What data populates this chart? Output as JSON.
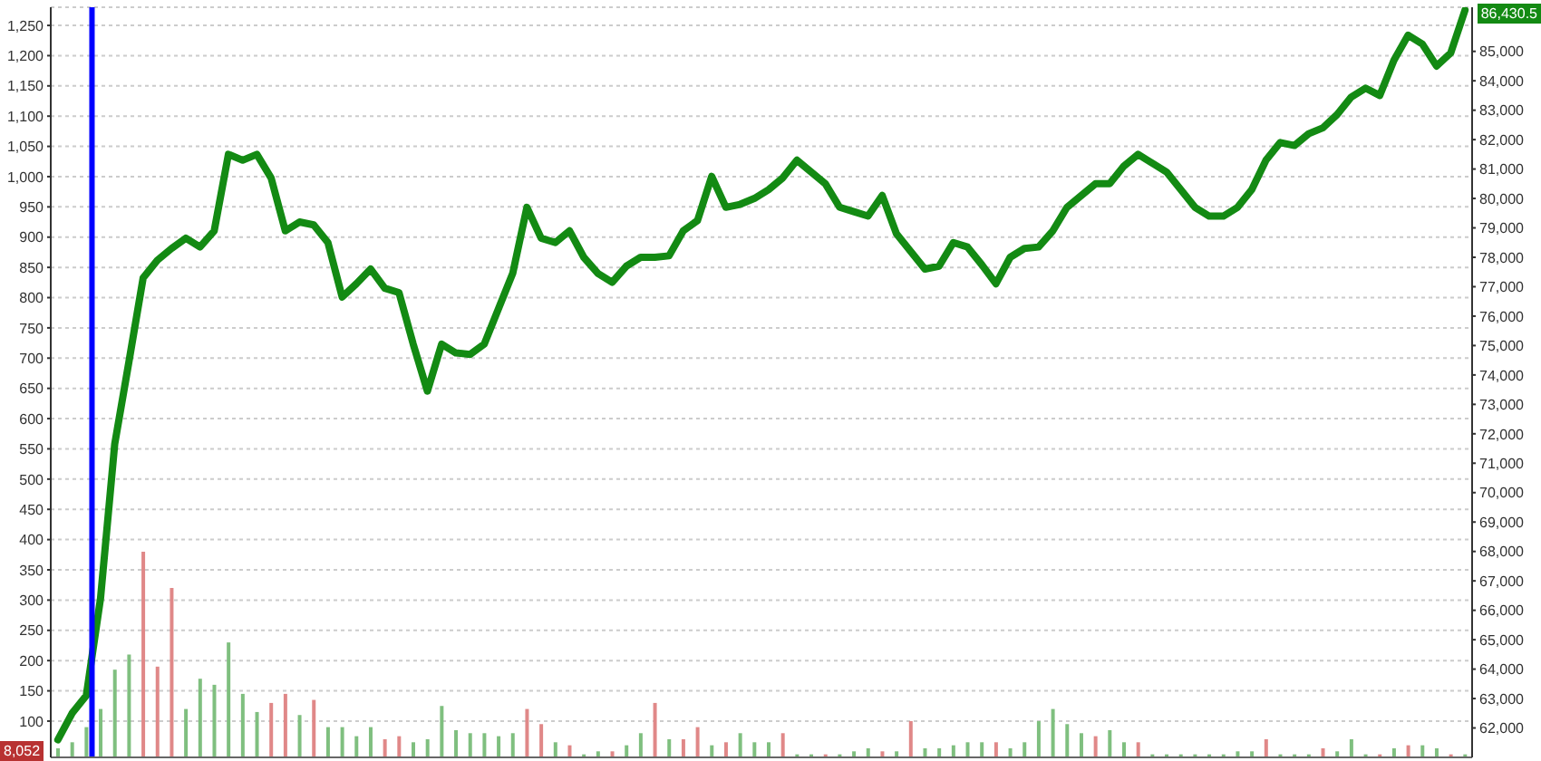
{
  "chart_data": {
    "type": "bar",
    "categories": [
      null,
      null,
      null,
      null,
      null,
      null,
      null,
      null,
      null,
      null,
      null,
      null,
      null,
      null,
      null,
      null,
      null,
      null,
      null,
      null,
      null,
      null,
      null,
      null,
      null,
      null,
      null,
      null,
      null,
      null,
      null,
      null,
      null,
      null,
      null,
      null,
      null,
      null,
      null,
      null,
      null,
      null,
      null,
      null,
      null,
      null,
      null,
      null,
      null,
      null,
      null,
      null,
      null,
      null,
      null,
      null,
      null,
      null,
      null,
      null,
      null,
      null,
      null,
      null,
      null,
      null,
      null,
      null,
      null,
      null,
      null,
      null,
      null,
      null,
      null,
      null,
      null,
      null,
      null,
      null,
      null,
      null,
      null,
      null,
      null,
      null,
      null,
      null,
      null,
      null,
      null,
      null,
      null,
      null,
      null,
      null,
      null,
      null,
      null,
      null
    ],
    "series": [
      {
        "axis": "y",
        "values": [
          55,
          65,
          90,
          120,
          185,
          210,
          380,
          190,
          320,
          120,
          170,
          160,
          230,
          145,
          115,
          130,
          145,
          110,
          135,
          90,
          90,
          75,
          90,
          70,
          75,
          65,
          70,
          125,
          85,
          80,
          80,
          75,
          80,
          120,
          95,
          65,
          60,
          45,
          50,
          50,
          60,
          80,
          130,
          70,
          70,
          90,
          60,
          65,
          80,
          65,
          65,
          80,
          45,
          45,
          45,
          45,
          50,
          55,
          50,
          50,
          100,
          55,
          55,
          60,
          65,
          65,
          65,
          55,
          65,
          100,
          120,
          95,
          80,
          75,
          85,
          65,
          65,
          45,
          45,
          45,
          45,
          45,
          45,
          50,
          50,
          70,
          45,
          45,
          45,
          55,
          50,
          70,
          45,
          45,
          55,
          60,
          60,
          55,
          45,
          45
        ],
        "colors": [
          "#7fbf7f",
          "#7fbf7f",
          "#7fbf7f",
          "#7fbf7f",
          "#7fbf7f",
          "#7fbf7f",
          "#e08888",
          "#e08888",
          "#e08888",
          "#7fbf7f",
          "#7fbf7f",
          "#7fbf7f",
          "#7fbf7f",
          "#7fbf7f",
          "#7fbf7f",
          "#e08888",
          "#e08888",
          "#7fbf7f",
          "#e08888",
          "#7fbf7f",
          "#7fbf7f",
          "#7fbf7f",
          "#7fbf7f",
          "#e08888",
          "#e08888",
          "#7fbf7f",
          "#7fbf7f",
          "#7fbf7f",
          "#7fbf7f",
          "#7fbf7f",
          "#7fbf7f",
          "#7fbf7f",
          "#7fbf7f",
          "#e08888",
          "#e08888",
          "#7fbf7f",
          "#e08888",
          "#7fbf7f",
          "#7fbf7f",
          "#e08888",
          "#7fbf7f",
          "#7fbf7f",
          "#e08888",
          "#7fbf7f",
          "#e08888",
          "#e08888",
          "#7fbf7f",
          "#e08888",
          "#7fbf7f",
          "#7fbf7f",
          "#7fbf7f",
          "#e08888",
          "#7fbf7f",
          "#7fbf7f",
          "#e08888",
          "#7fbf7f",
          "#7fbf7f",
          "#7fbf7f",
          "#e08888",
          "#7fbf7f",
          "#e08888",
          "#7fbf7f",
          "#7fbf7f",
          "#7fbf7f",
          "#7fbf7f",
          "#7fbf7f",
          "#e08888",
          "#7fbf7f",
          "#7fbf7f",
          "#7fbf7f",
          "#7fbf7f",
          "#7fbf7f",
          "#7fbf7f",
          "#e08888",
          "#7fbf7f",
          "#7fbf7f",
          "#e08888",
          "#7fbf7f",
          "#7fbf7f",
          "#7fbf7f",
          "#7fbf7f",
          "#7fbf7f",
          "#7fbf7f",
          "#7fbf7f",
          "#7fbf7f",
          "#e08888",
          "#7fbf7f",
          "#7fbf7f",
          "#7fbf7f",
          "#e08888",
          "#7fbf7f",
          "#7fbf7f",
          "#7fbf7f",
          "#e08888",
          "#7fbf7f",
          "#e08888",
          "#7fbf7f",
          "#7fbf7f",
          "#e08888",
          "#7fbf7f"
        ]
      },
      {
        "type": "line",
        "axis": "y2",
        "color": "#138a13",
        "values": [
          61600,
          62500,
          63100,
          66400,
          71650,
          74450,
          77300,
          77900,
          78300,
          78650,
          78350,
          78900,
          81500,
          81300,
          81500,
          80700,
          78900,
          79200,
          79100,
          78500,
          76650,
          77100,
          77600,
          76950,
          76800,
          75050,
          73450,
          75050,
          74750,
          74700,
          75050,
          76250,
          77450,
          79700,
          78650,
          78500,
          78900,
          78000,
          77450,
          77150,
          77700,
          78000,
          78000,
          78050,
          78900,
          79250,
          80750,
          79700,
          79800,
          80000,
          80300,
          80700,
          81300,
          80900,
          80500,
          79700,
          79550,
          79400,
          80100,
          78800,
          78200,
          77600,
          77700,
          78500,
          78350,
          77750,
          77100,
          78000,
          78300,
          78350,
          78900,
          79700,
          80100,
          80500,
          80500,
          81100,
          81500,
          81200,
          80900,
          80300,
          79700,
          79400,
          79400,
          79700,
          80300,
          81300,
          81900,
          81800,
          82200,
          82400,
          82850,
          83450,
          83750,
          83500,
          84700,
          85550,
          85250,
          84500,
          84950,
          86400
        ]
      }
    ],
    "ylim": [
      40,
      1280
    ],
    "yticks": [
      100,
      150,
      200,
      250,
      300,
      350,
      400,
      450,
      500,
      550,
      600,
      650,
      700,
      750,
      800,
      850,
      900,
      950,
      {
        "value": 1000,
        "label": "1,000"
      },
      {
        "value": 1050,
        "label": "1,050"
      },
      {
        "value": 1100,
        "label": "1,100"
      },
      {
        "value": 1150,
        "label": "1,150"
      },
      {
        "value": 1200,
        "label": "1,200"
      },
      {
        "value": 1250,
        "label": "1,250"
      }
    ],
    "y2lim": [
      61000,
      86500
    ],
    "y2ticks": [
      {
        "value": 62000,
        "label": "62,000"
      },
      {
        "value": 63000,
        "label": "63,000"
      },
      {
        "value": 64000,
        "label": "64,000"
      },
      {
        "value": 65000,
        "label": "65,000"
      },
      {
        "value": 66000,
        "label": "66,000"
      },
      {
        "value": 67000,
        "label": "67,000"
      },
      {
        "value": 68000,
        "label": "68,000"
      },
      {
        "value": 69000,
        "label": "69,000"
      },
      {
        "value": 70000,
        "label": "70,000"
      },
      {
        "value": 71000,
        "label": "71,000"
      },
      {
        "value": 72000,
        "label": "72,000"
      },
      {
        "value": 73000,
        "label": "73,000"
      },
      {
        "value": 74000,
        "label": "74,000"
      },
      {
        "value": 75000,
        "label": "75,000"
      },
      {
        "value": 76000,
        "label": "76,000"
      },
      {
        "value": 77000,
        "label": "77,000"
      },
      {
        "value": 78000,
        "label": "78,000"
      },
      {
        "value": 79000,
        "label": "79,000"
      },
      {
        "value": 80000,
        "label": "80,000"
      },
      {
        "value": 81000,
        "label": "81,000"
      },
      {
        "value": 82000,
        "label": "82,000"
      },
      {
        "value": 83000,
        "label": "83,000"
      },
      {
        "value": 84000,
        "label": "84,000"
      },
      {
        "value": 85000,
        "label": "85,000"
      }
    ],
    "grid": "y",
    "legend": false,
    "annotations": [
      "86,430.5",
      "8,052"
    ]
  }
}
